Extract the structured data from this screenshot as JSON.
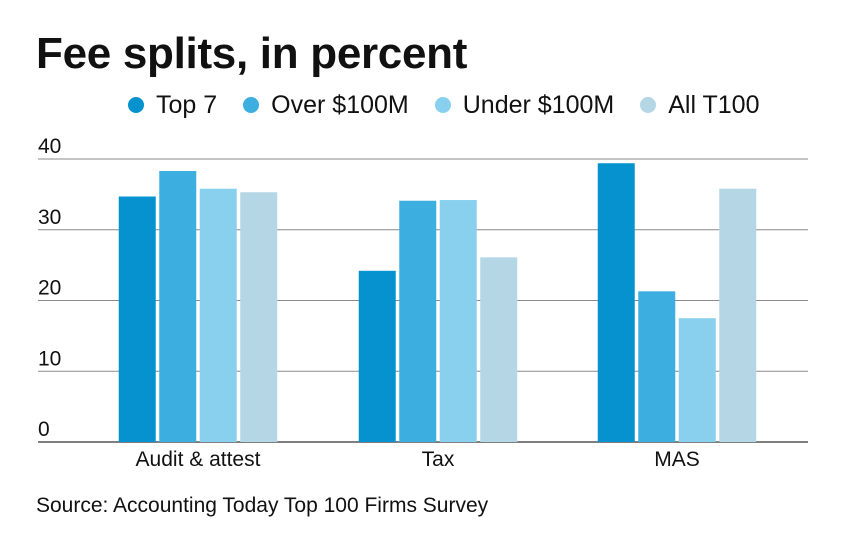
{
  "chart_data": {
    "type": "bar",
    "title": "Fee splits, in percent",
    "categories": [
      "Audit & attest",
      "Tax",
      "MAS"
    ],
    "series": [
      {
        "name": "Top 7",
        "values": [
          34.7,
          24.2,
          39.4
        ],
        "color": "#0592cf"
      },
      {
        "name": "Over $100M",
        "values": [
          38.3,
          34.1,
          21.3
        ],
        "color": "#3daee0"
      },
      {
        "name": "Under $100M",
        "values": [
          35.8,
          34.2,
          17.5
        ],
        "color": "#89d0ee"
      },
      {
        "name": "All T100",
        "values": [
          35.3,
          26.1,
          35.8
        ],
        "color": "#b5d6e5"
      }
    ],
    "yticks": [
      0,
      10,
      20,
      30,
      40
    ],
    "ylim": [
      0,
      40
    ],
    "xlabel": "",
    "ylabel": "",
    "grid": true,
    "legend": "top"
  },
  "source": "Source: Accounting Today Top 100 Firms Survey"
}
